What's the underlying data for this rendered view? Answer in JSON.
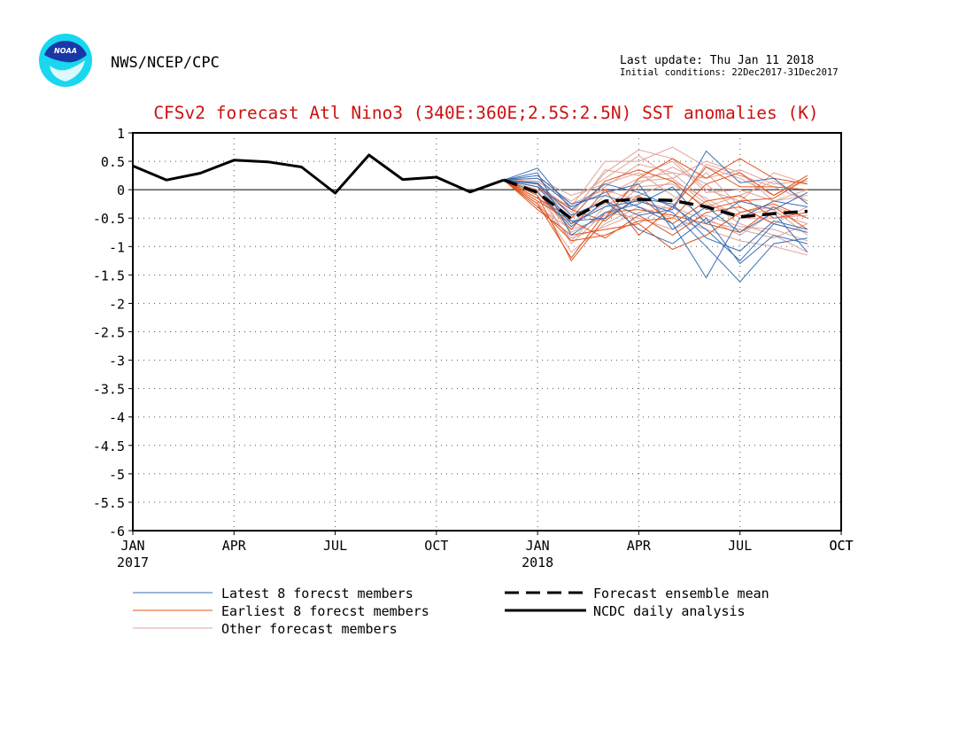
{
  "header": {
    "agency": "NWS/NCEP/CPC",
    "logo_text": "NOAA",
    "last_update": "Last update: Thu Jan 11 2018",
    "initial_conditions": "Initial conditions: 22Dec2017-31Dec2017"
  },
  "colors": {
    "latest": "#3a6fb5",
    "earliest": "#e0541c",
    "other": "#dfa39a",
    "title": "#cc1111",
    "logo_blue": "#1a37a8",
    "logo_cyan": "#18d7ee"
  },
  "chart_data": {
    "type": "line",
    "title": "CFSv2 forecast Atl Nino3 (340E:360E;2.5S:2.5N) SST anomalies (K)",
    "ylim": [
      -6,
      1
    ],
    "y_ticks": [
      "1",
      "0.5",
      "0",
      "-0.5",
      "-1",
      "-1.5",
      "-2",
      "-2.5",
      "-3",
      "-3.5",
      "-4",
      "-4.5",
      "-5",
      "-5.5",
      "-6"
    ],
    "x_ticks": [
      {
        "label": "JAN",
        "sub": "2017",
        "month": 0
      },
      {
        "label": "APR",
        "sub": "",
        "month": 3
      },
      {
        "label": "JUL",
        "sub": "",
        "month": 6
      },
      {
        "label": "OCT",
        "sub": "",
        "month": 9
      },
      {
        "label": "JAN",
        "sub": "2018",
        "month": 12
      },
      {
        "label": "APR",
        "sub": "",
        "month": 15
      },
      {
        "label": "JUL",
        "sub": "",
        "month": 18
      },
      {
        "label": "OCT",
        "sub": "",
        "month": 21
      }
    ],
    "grid": true,
    "zero_line": true,
    "legend": [
      {
        "label": "Latest 8 forecst members",
        "style": "latest"
      },
      {
        "label": "Earliest 8 forecst members",
        "style": "earliest"
      },
      {
        "label": "Other forecast members",
        "style": "other"
      },
      {
        "label": "Forecast ensemble mean",
        "style": "mean"
      },
      {
        "label": "NCDC daily analysis",
        "style": "analysis"
      }
    ],
    "analysis": {
      "name": "NCDC daily analysis",
      "months": [
        0,
        1,
        2,
        3,
        4,
        5,
        6,
        7,
        8,
        9,
        10,
        11
      ],
      "values": [
        0.42,
        0.17,
        0.29,
        0.52,
        0.49,
        0.4,
        -0.06,
        0.61,
        0.18,
        0.22,
        -0.04,
        0.17
      ]
    },
    "ensemble_mean": {
      "name": "Forecast ensemble mean",
      "months": [
        11,
        12,
        13,
        14,
        15,
        16,
        17,
        18,
        19,
        20
      ],
      "values": [
        0.17,
        -0.05,
        -0.51,
        -0.2,
        -0.17,
        -0.19,
        -0.3,
        -0.48,
        -0.42,
        -0.38
      ]
    },
    "forecast_months": [
      11,
      12,
      13,
      14,
      15,
      16,
      17,
      18,
      19,
      20
    ],
    "members_latest": [
      [
        0.17,
        0.38,
        -0.35,
        0.1,
        -0.05,
        -0.3,
        -0.7,
        -1.25,
        -0.6,
        -0.75
      ],
      [
        0.17,
        0.25,
        -0.25,
        -0.1,
        -0.3,
        -0.6,
        -1.55,
        -0.5,
        -0.2,
        -0.3
      ],
      [
        0.17,
        0.05,
        -0.6,
        -0.3,
        -0.2,
        -0.4,
        -1.0,
        -1.62,
        -0.95,
        -0.85
      ],
      [
        0.17,
        -0.05,
        -0.65,
        -0.2,
        -0.45,
        -0.35,
        0.68,
        0.12,
        0.2,
        -0.25
      ],
      [
        0.17,
        0.12,
        -0.45,
        -0.2,
        -0.7,
        -0.95,
        -0.5,
        -1.3,
        -0.8,
        -0.95
      ],
      [
        0.17,
        0.3,
        -0.8,
        -0.4,
        -0.25,
        0.05,
        -0.6,
        -0.2,
        -0.35,
        -0.05
      ],
      [
        0.17,
        0.1,
        -0.55,
        -0.5,
        -0.15,
        -0.25,
        -0.85,
        -1.08,
        -0.55,
        -0.7
      ],
      [
        0.17,
        0.2,
        -0.3,
        -0.05,
        0.1,
        -0.7,
        -0.3,
        -0.75,
        -0.4,
        -1.1
      ]
    ],
    "members_earliest": [
      [
        0.17,
        -0.1,
        -1.25,
        -0.5,
        0.2,
        0.55,
        0.2,
        0.55,
        0.2,
        0.1
      ],
      [
        0.17,
        -0.3,
        -0.9,
        -0.8,
        -0.55,
        -0.5,
        0.1,
        0.3,
        -0.1,
        0.25
      ],
      [
        0.17,
        -0.2,
        -0.55,
        -0.85,
        -0.45,
        -0.8,
        -0.4,
        -0.3,
        -0.6,
        -0.75
      ],
      [
        0.17,
        -0.05,
        -0.7,
        0.0,
        -0.8,
        -0.3,
        0.4,
        0.05,
        0.05,
        0.0
      ],
      [
        0.17,
        -0.25,
        -1.2,
        -0.4,
        -0.35,
        -0.45,
        -0.6,
        -0.75,
        -0.3,
        -0.7
      ],
      [
        0.17,
        0.05,
        -0.35,
        -0.55,
        -0.1,
        -0.6,
        -0.2,
        -0.1,
        -0.5,
        -0.4
      ],
      [
        0.17,
        -0.35,
        -0.8,
        -0.7,
        -0.6,
        -1.05,
        -0.8,
        -0.4,
        -0.25,
        -0.5
      ],
      [
        0.17,
        -0.15,
        -0.5,
        0.15,
        0.35,
        0.15,
        -0.35,
        -0.2,
        -0.15,
        0.2
      ]
    ],
    "members_other": [
      [
        0.17,
        0.0,
        -0.3,
        0.5,
        0.5,
        0.75,
        0.4,
        0.2,
        -0.1,
        0.2
      ],
      [
        0.17,
        0.1,
        -0.6,
        -0.1,
        0.2,
        0.3,
        -0.2,
        -0.6,
        -0.8,
        -1.1
      ],
      [
        0.17,
        -0.1,
        -0.9,
        -0.3,
        0.1,
        0.4,
        0.1,
        -0.4,
        -0.3,
        -0.5
      ],
      [
        0.17,
        0.15,
        -0.2,
        0.2,
        0.6,
        0.2,
        0.5,
        0.3,
        -0.2,
        0.0
      ],
      [
        0.17,
        -0.2,
        -1.1,
        -0.6,
        -0.3,
        -0.5,
        -0.7,
        -0.9,
        -1.0,
        -1.15
      ],
      [
        0.17,
        0.05,
        -0.4,
        0.3,
        0.7,
        0.55,
        0.0,
        -0.2,
        0.3,
        0.1
      ],
      [
        0.17,
        -0.05,
        -0.5,
        -0.2,
        -0.6,
        -0.2,
        0.3,
        -0.3,
        -0.6,
        -0.3
      ],
      [
        0.17,
        0.2,
        -0.1,
        0.1,
        0.3,
        -0.1,
        -0.5,
        -0.8,
        -0.4,
        -0.6
      ],
      [
        0.17,
        -0.3,
        -0.7,
        -0.5,
        0.05,
        0.1,
        -0.3,
        -0.1,
        0.15,
        -0.2
      ],
      [
        0.17,
        0.0,
        -0.95,
        -0.4,
        -0.5,
        -0.7,
        -0.45,
        -0.65,
        -0.7,
        -0.9
      ],
      [
        0.17,
        0.1,
        -0.35,
        0.05,
        0.45,
        0.3,
        0.2,
        0.35,
        0.1,
        0.15
      ],
      [
        0.17,
        -0.15,
        -0.6,
        -0.25,
        -0.1,
        0.15,
        -0.15,
        -0.5,
        -0.5,
        -0.45
      ],
      [
        0.17,
        0.05,
        -0.45,
        0.35,
        0.25,
        0.5,
        -0.05,
        0.0,
        -0.2,
        -0.1
      ],
      [
        0.17,
        -0.25,
        -0.85,
        -0.65,
        -0.4,
        -0.3,
        -0.55,
        -0.7,
        -0.85,
        -0.6
      ],
      [
        0.17,
        0.15,
        -0.25,
        0.0,
        -0.2,
        -0.35,
        0.45,
        0.25,
        0.05,
        -0.2
      ],
      [
        0.17,
        -0.05,
        -0.75,
        -0.45,
        0.15,
        0.2,
        -0.25,
        -0.45,
        -0.35,
        -0.8
      ]
    ]
  }
}
